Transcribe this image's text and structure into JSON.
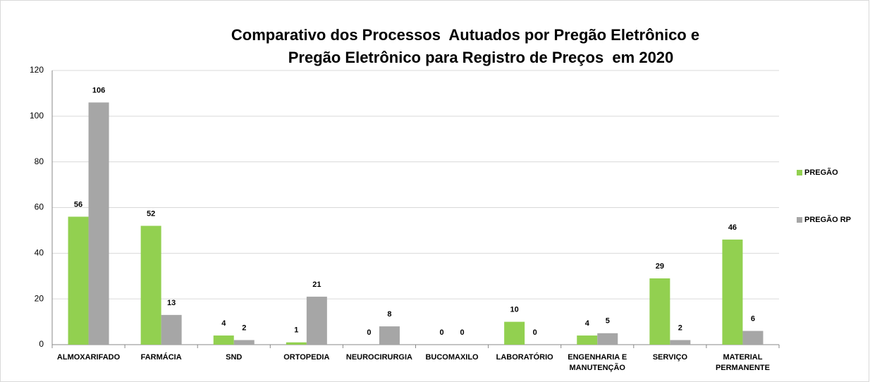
{
  "chart_data": {
    "type": "bar",
    "title": [
      "Comparativo dos Processos  Autuados por Pregão Eletrônico e",
      "Pregão Eletrônico para Registro de Preços  em 2020"
    ],
    "categories": [
      [
        "ALMOXARIFADO"
      ],
      [
        "FARMÁCIA"
      ],
      [
        "SND"
      ],
      [
        "ORTOPEDIA"
      ],
      [
        "NEUROCIRURGIA"
      ],
      [
        "BUCOMAXILO"
      ],
      [
        "LABORATÓRIO"
      ],
      [
        "ENGENHARIA E",
        "MANUTENÇÃO"
      ],
      [
        "SERVIÇO"
      ],
      [
        "MATERIAL",
        "PERMANENTE"
      ]
    ],
    "series": [
      {
        "name": "PREGÃO",
        "color": "#92d050",
        "values": [
          56,
          52,
          4,
          1,
          0,
          0,
          10,
          4,
          29,
          46
        ]
      },
      {
        "name": "PREGÃO RP",
        "color": "#a6a6a6",
        "values": [
          106,
          13,
          2,
          21,
          8,
          0,
          0,
          5,
          2,
          6
        ]
      }
    ],
    "ylim": [
      0,
      120
    ],
    "yticks": [
      0,
      20,
      40,
      60,
      80,
      100,
      120
    ],
    "grid": true,
    "legend": "right"
  }
}
